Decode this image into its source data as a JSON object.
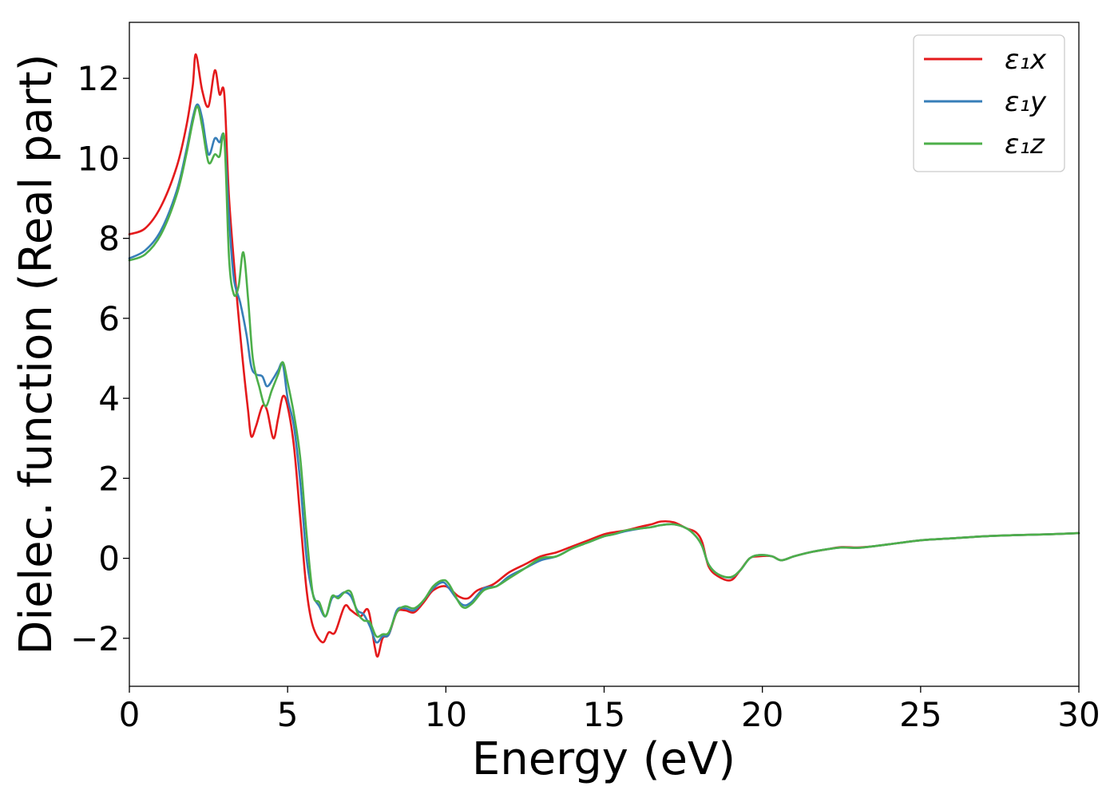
{
  "chart_data": {
    "type": "line",
    "title": "",
    "xlabel": "Energy (eV)",
    "ylabel": "Dielec. function (Real part)",
    "xlim": [
      0,
      30
    ],
    "ylim": [
      -3.2,
      13.4
    ],
    "xticks": [
      0,
      5,
      10,
      15,
      20,
      25,
      30
    ],
    "xtick_labels": [
      "0",
      "5",
      "10",
      "15",
      "20",
      "25",
      "30"
    ],
    "yticks": [
      -2,
      0,
      2,
      4,
      6,
      8,
      10,
      12
    ],
    "ytick_labels": [
      "−2",
      "0",
      "2",
      "4",
      "6",
      "8",
      "10",
      "12"
    ],
    "grid": false,
    "legend_position": "top-right",
    "series": [
      {
        "name": "ε₁x",
        "color": "#e41a1c",
        "points": [
          [
            0,
            8.1
          ],
          [
            0.5,
            8.25
          ],
          [
            1.0,
            8.8
          ],
          [
            1.5,
            9.8
          ],
          [
            1.8,
            10.8
          ],
          [
            2.0,
            11.8
          ],
          [
            2.1,
            12.6
          ],
          [
            2.3,
            11.7
          ],
          [
            2.5,
            11.3
          ],
          [
            2.7,
            12.2
          ],
          [
            2.85,
            11.6
          ],
          [
            3.0,
            11.6
          ],
          [
            3.15,
            9.0
          ],
          [
            3.4,
            6.5
          ],
          [
            3.6,
            4.8
          ],
          [
            3.75,
            3.7
          ],
          [
            3.85,
            3.05
          ],
          [
            4.0,
            3.3
          ],
          [
            4.2,
            3.8
          ],
          [
            4.35,
            3.7
          ],
          [
            4.55,
            3.0
          ],
          [
            4.7,
            3.5
          ],
          [
            4.85,
            4.05
          ],
          [
            5.0,
            3.8
          ],
          [
            5.2,
            2.8
          ],
          [
            5.4,
            1.0
          ],
          [
            5.6,
            -0.8
          ],
          [
            5.8,
            -1.7
          ],
          [
            6.1,
            -2.1
          ],
          [
            6.3,
            -1.85
          ],
          [
            6.5,
            -1.85
          ],
          [
            6.8,
            -1.2
          ],
          [
            7.0,
            -1.3
          ],
          [
            7.3,
            -1.45
          ],
          [
            7.55,
            -1.3
          ],
          [
            7.75,
            -2.2
          ],
          [
            7.85,
            -2.45
          ],
          [
            8.0,
            -2.0
          ],
          [
            8.2,
            -1.9
          ],
          [
            8.45,
            -1.35
          ],
          [
            8.7,
            -1.3
          ],
          [
            9.0,
            -1.35
          ],
          [
            9.3,
            -1.1
          ],
          [
            9.6,
            -0.8
          ],
          [
            10.0,
            -0.7
          ],
          [
            10.4,
            -0.95
          ],
          [
            10.7,
            -1.0
          ],
          [
            11.0,
            -0.8
          ],
          [
            11.5,
            -0.65
          ],
          [
            12.0,
            -0.35
          ],
          [
            12.5,
            -0.15
          ],
          [
            13.0,
            0.05
          ],
          [
            13.5,
            0.15
          ],
          [
            14.0,
            0.3
          ],
          [
            14.5,
            0.45
          ],
          [
            15.0,
            0.6
          ],
          [
            15.3,
            0.65
          ],
          [
            15.7,
            0.7
          ],
          [
            16.2,
            0.8
          ],
          [
            16.5,
            0.85
          ],
          [
            16.8,
            0.92
          ],
          [
            17.2,
            0.9
          ],
          [
            17.6,
            0.75
          ],
          [
            17.9,
            0.65
          ],
          [
            18.1,
            0.4
          ],
          [
            18.3,
            -0.2
          ],
          [
            18.6,
            -0.45
          ],
          [
            19.0,
            -0.55
          ],
          [
            19.3,
            -0.3
          ],
          [
            19.6,
            0.0
          ],
          [
            19.9,
            0.05
          ],
          [
            20.3,
            0.05
          ],
          [
            20.6,
            -0.05
          ],
          [
            21.0,
            0.05
          ],
          [
            21.5,
            0.15
          ],
          [
            22.0,
            0.22
          ],
          [
            22.5,
            0.28
          ],
          [
            23.0,
            0.27
          ],
          [
            23.5,
            0.3
          ],
          [
            24.0,
            0.35
          ],
          [
            25.0,
            0.45
          ],
          [
            26.0,
            0.5
          ],
          [
            27.0,
            0.55
          ],
          [
            28.0,
            0.58
          ],
          [
            29.0,
            0.6
          ],
          [
            30.0,
            0.63
          ]
        ]
      },
      {
        "name": "ε₁y",
        "color": "#377eb8",
        "points": [
          [
            0,
            7.5
          ],
          [
            0.5,
            7.7
          ],
          [
            1.0,
            8.2
          ],
          [
            1.5,
            9.2
          ],
          [
            1.8,
            10.2
          ],
          [
            2.0,
            11.0
          ],
          [
            2.15,
            11.35
          ],
          [
            2.3,
            11.0
          ],
          [
            2.5,
            10.1
          ],
          [
            2.7,
            10.5
          ],
          [
            2.85,
            10.4
          ],
          [
            3.0,
            10.5
          ],
          [
            3.15,
            8.5
          ],
          [
            3.3,
            7.0
          ],
          [
            3.5,
            6.4
          ],
          [
            3.7,
            5.6
          ],
          [
            3.85,
            4.8
          ],
          [
            4.0,
            4.6
          ],
          [
            4.2,
            4.55
          ],
          [
            4.35,
            4.3
          ],
          [
            4.55,
            4.5
          ],
          [
            4.7,
            4.7
          ],
          [
            4.85,
            4.85
          ],
          [
            5.0,
            4.0
          ],
          [
            5.2,
            3.3
          ],
          [
            5.4,
            1.9
          ],
          [
            5.6,
            0.0
          ],
          [
            5.8,
            -0.9
          ],
          [
            6.0,
            -1.2
          ],
          [
            6.2,
            -1.45
          ],
          [
            6.4,
            -1.0
          ],
          [
            6.6,
            -0.95
          ],
          [
            6.8,
            -0.85
          ],
          [
            7.0,
            -0.95
          ],
          [
            7.2,
            -1.3
          ],
          [
            7.4,
            -1.4
          ],
          [
            7.6,
            -1.7
          ],
          [
            7.8,
            -2.1
          ],
          [
            8.0,
            -1.95
          ],
          [
            8.2,
            -1.9
          ],
          [
            8.45,
            -1.3
          ],
          [
            8.7,
            -1.25
          ],
          [
            9.0,
            -1.3
          ],
          [
            9.3,
            -1.05
          ],
          [
            9.6,
            -0.75
          ],
          [
            9.9,
            -0.6
          ],
          [
            10.1,
            -0.75
          ],
          [
            10.5,
            -1.15
          ],
          [
            10.8,
            -1.1
          ],
          [
            11.2,
            -0.75
          ],
          [
            11.6,
            -0.7
          ],
          [
            12.0,
            -0.45
          ],
          [
            12.5,
            -0.25
          ],
          [
            13.0,
            -0.05
          ],
          [
            13.5,
            0.05
          ],
          [
            14.0,
            0.25
          ],
          [
            14.5,
            0.4
          ],
          [
            15.0,
            0.55
          ],
          [
            15.3,
            0.6
          ],
          [
            15.7,
            0.68
          ],
          [
            16.2,
            0.75
          ],
          [
            16.5,
            0.78
          ],
          [
            16.8,
            0.83
          ],
          [
            17.2,
            0.85
          ],
          [
            17.6,
            0.75
          ],
          [
            17.9,
            0.55
          ],
          [
            18.1,
            0.3
          ],
          [
            18.3,
            -0.15
          ],
          [
            18.6,
            -0.4
          ],
          [
            19.0,
            -0.48
          ],
          [
            19.3,
            -0.3
          ],
          [
            19.6,
            0.0
          ],
          [
            19.9,
            0.08
          ],
          [
            20.3,
            0.05
          ],
          [
            20.6,
            -0.05
          ],
          [
            21.0,
            0.05
          ],
          [
            21.5,
            0.15
          ],
          [
            22.0,
            0.22
          ],
          [
            22.5,
            0.27
          ],
          [
            23.0,
            0.26
          ],
          [
            23.5,
            0.3
          ],
          [
            24.0,
            0.35
          ],
          [
            25.0,
            0.45
          ],
          [
            26.0,
            0.5
          ],
          [
            27.0,
            0.55
          ],
          [
            28.0,
            0.58
          ],
          [
            29.0,
            0.6
          ],
          [
            30.0,
            0.63
          ]
        ]
      },
      {
        "name": "ε₁z",
        "color": "#4daf4a",
        "points": [
          [
            0,
            7.45
          ],
          [
            0.5,
            7.6
          ],
          [
            1.0,
            8.1
          ],
          [
            1.5,
            9.1
          ],
          [
            1.8,
            10.1
          ],
          [
            2.0,
            10.9
          ],
          [
            2.15,
            11.3
          ],
          [
            2.3,
            10.8
          ],
          [
            2.5,
            9.9
          ],
          [
            2.7,
            10.1
          ],
          [
            2.85,
            10.05
          ],
          [
            3.0,
            10.5
          ],
          [
            3.15,
            7.5
          ],
          [
            3.3,
            6.6
          ],
          [
            3.45,
            6.8
          ],
          [
            3.6,
            7.65
          ],
          [
            3.75,
            6.5
          ],
          [
            3.9,
            5.0
          ],
          [
            4.1,
            4.3
          ],
          [
            4.3,
            3.8
          ],
          [
            4.5,
            4.2
          ],
          [
            4.7,
            4.6
          ],
          [
            4.85,
            4.9
          ],
          [
            5.0,
            4.4
          ],
          [
            5.2,
            3.6
          ],
          [
            5.4,
            2.5
          ],
          [
            5.6,
            0.6
          ],
          [
            5.8,
            -0.9
          ],
          [
            6.0,
            -1.1
          ],
          [
            6.2,
            -1.45
          ],
          [
            6.4,
            -0.95
          ],
          [
            6.6,
            -1.0
          ],
          [
            6.8,
            -0.85
          ],
          [
            7.0,
            -0.85
          ],
          [
            7.2,
            -1.35
          ],
          [
            7.4,
            -1.55
          ],
          [
            7.6,
            -1.6
          ],
          [
            7.8,
            -1.95
          ],
          [
            8.0,
            -1.9
          ],
          [
            8.2,
            -1.85
          ],
          [
            8.45,
            -1.35
          ],
          [
            8.7,
            -1.2
          ],
          [
            9.0,
            -1.25
          ],
          [
            9.3,
            -1.05
          ],
          [
            9.6,
            -0.7
          ],
          [
            9.9,
            -0.55
          ],
          [
            10.1,
            -0.65
          ],
          [
            10.5,
            -1.2
          ],
          [
            10.8,
            -1.15
          ],
          [
            11.2,
            -0.8
          ],
          [
            11.6,
            -0.7
          ],
          [
            12.0,
            -0.5
          ],
          [
            12.5,
            -0.25
          ],
          [
            13.0,
            0.0
          ],
          [
            13.5,
            0.05
          ],
          [
            14.0,
            0.25
          ],
          [
            14.5,
            0.4
          ],
          [
            15.0,
            0.55
          ],
          [
            15.3,
            0.6
          ],
          [
            15.7,
            0.7
          ],
          [
            16.2,
            0.75
          ],
          [
            16.5,
            0.78
          ],
          [
            16.8,
            0.83
          ],
          [
            17.2,
            0.85
          ],
          [
            17.6,
            0.75
          ],
          [
            17.9,
            0.55
          ],
          [
            18.1,
            0.3
          ],
          [
            18.3,
            -0.15
          ],
          [
            18.6,
            -0.4
          ],
          [
            19.0,
            -0.47
          ],
          [
            19.3,
            -0.3
          ],
          [
            19.6,
            0.0
          ],
          [
            19.9,
            0.08
          ],
          [
            20.3,
            0.05
          ],
          [
            20.6,
            -0.05
          ],
          [
            21.0,
            0.05
          ],
          [
            21.5,
            0.15
          ],
          [
            22.0,
            0.22
          ],
          [
            22.5,
            0.27
          ],
          [
            23.0,
            0.26
          ],
          [
            23.5,
            0.3
          ],
          [
            24.0,
            0.35
          ],
          [
            25.0,
            0.45
          ],
          [
            26.0,
            0.5
          ],
          [
            27.0,
            0.55
          ],
          [
            28.0,
            0.58
          ],
          [
            29.0,
            0.6
          ],
          [
            30.0,
            0.63
          ]
        ]
      }
    ]
  }
}
